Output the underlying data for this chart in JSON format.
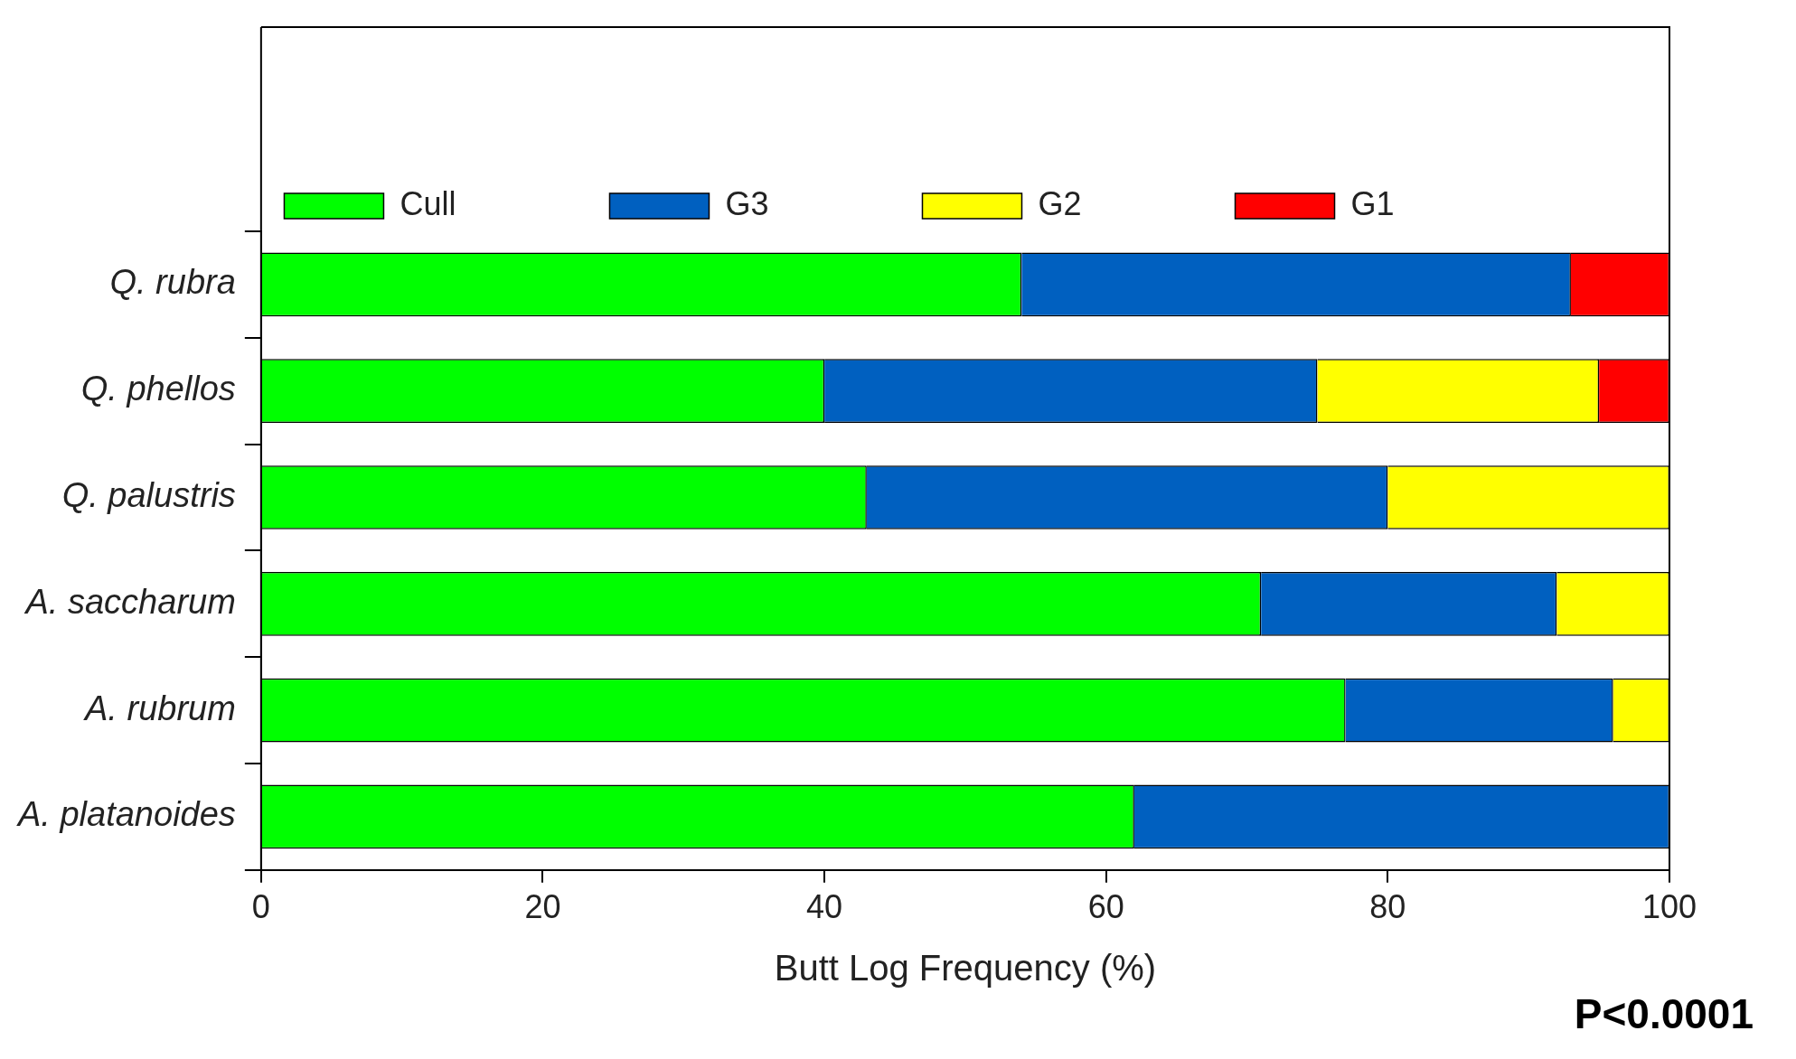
{
  "chart_data": {
    "type": "bar",
    "orientation": "horizontal",
    "stacked": true,
    "xlabel": "Butt Log Frequency (%)",
    "categories": [
      "Q. rubra",
      "Q. phellos",
      "Q. palustris",
      "A. saccharum",
      "A. rubrum",
      "A. platanoides"
    ],
    "series": [
      {
        "name": "Cull",
        "color": "#00ff00",
        "values": [
          54,
          40,
          43,
          71,
          77,
          62
        ]
      },
      {
        "name": "G3",
        "color": "#0060c0",
        "values": [
          39,
          35,
          37,
          21,
          19,
          38
        ]
      },
      {
        "name": "G2",
        "color": "#ffff00",
        "values": [
          0,
          20,
          20,
          8,
          4,
          0
        ]
      },
      {
        "name": "G1",
        "color": "#ff0000",
        "values": [
          7,
          5,
          0,
          0,
          0,
          0
        ]
      }
    ],
    "xlim": [
      0,
      100
    ],
    "xticks": [
      0,
      20,
      40,
      60,
      80,
      100
    ],
    "grid": false,
    "legend": "top",
    "annotations": [
      "P<0.0001"
    ]
  }
}
